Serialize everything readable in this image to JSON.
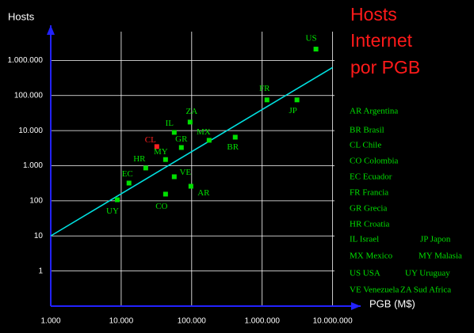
{
  "chart_data": {
    "type": "scatter",
    "title": [
      "Hosts",
      "Internet",
      "por PGB"
    ],
    "y_label": "Hosts",
    "x_label": "PGB (M$)",
    "log_x": true,
    "log_y": true,
    "grid": true,
    "xlim": [
      1000,
      25000000
    ],
    "ylim": [
      0.1,
      10000000
    ],
    "xticks": [
      {
        "value": 1000,
        "label": "1.000"
      },
      {
        "value": 10000,
        "label": "10.000"
      },
      {
        "value": 100000,
        "label": "100.000"
      },
      {
        "value": 1000000,
        "label": "1.000.000"
      },
      {
        "value": 10000000,
        "label": "10.000.000"
      }
    ],
    "yticks": [
      1,
      10,
      100,
      {
        "value": 1000,
        "label": "1.000"
      },
      {
        "value": 10000,
        "label": "10.000"
      },
      {
        "value": 100000,
        "label": "100.000"
      },
      {
        "value": 1000000,
        "label": "1.000.000"
      }
    ],
    "point_labels": [
      "US",
      "FR",
      "JP",
      "BR",
      "ZA",
      "IL",
      "MX",
      "GR",
      "CL",
      "MY",
      "HR",
      "VE",
      "EC",
      "AR",
      "CO",
      "UY"
    ],
    "x": [
      5800000,
      1170000,
      3120000,
      415000,
      95000,
      56600,
      177000,
      71400,
      32000,
      42600,
      22300,
      56600,
      12900,
      97500,
      42600,
      8800
    ],
    "values": [
      2100000,
      75000,
      75000,
      6500,
      17500,
      8900,
      5300,
      3300,
      3500,
      1500,
      860,
      485,
      320,
      260,
      155,
      107
    ],
    "colors": [
      "#00e000",
      "#00e000",
      "#00e000",
      "#00e000",
      "#00e000",
      "#00e000",
      "#00e000",
      "#00e000",
      "#ff2020",
      "#00e000",
      "#00e000",
      "#00e000",
      "#00e000",
      "#00e000",
      "#00e000",
      "#00e000"
    ],
    "trend": {
      "x": [
        1000,
        10000000
      ],
      "values": [
        10,
        630000
      ],
      "color": "#00e0e0"
    },
    "legend": [
      "AR Argentina",
      "BR Brasil",
      "CL Chile",
      "CO Colombia",
      "EC Ecuador",
      "FR Francia",
      "GR Grecia",
      "HR Croatia",
      "IL  Israel",
      "JP Japon",
      "MX Mexico",
      "MY Malasia",
      "US USA",
      "UY Uruguay",
      "VE Venezuela",
      "ZA Sud Africa"
    ]
  }
}
